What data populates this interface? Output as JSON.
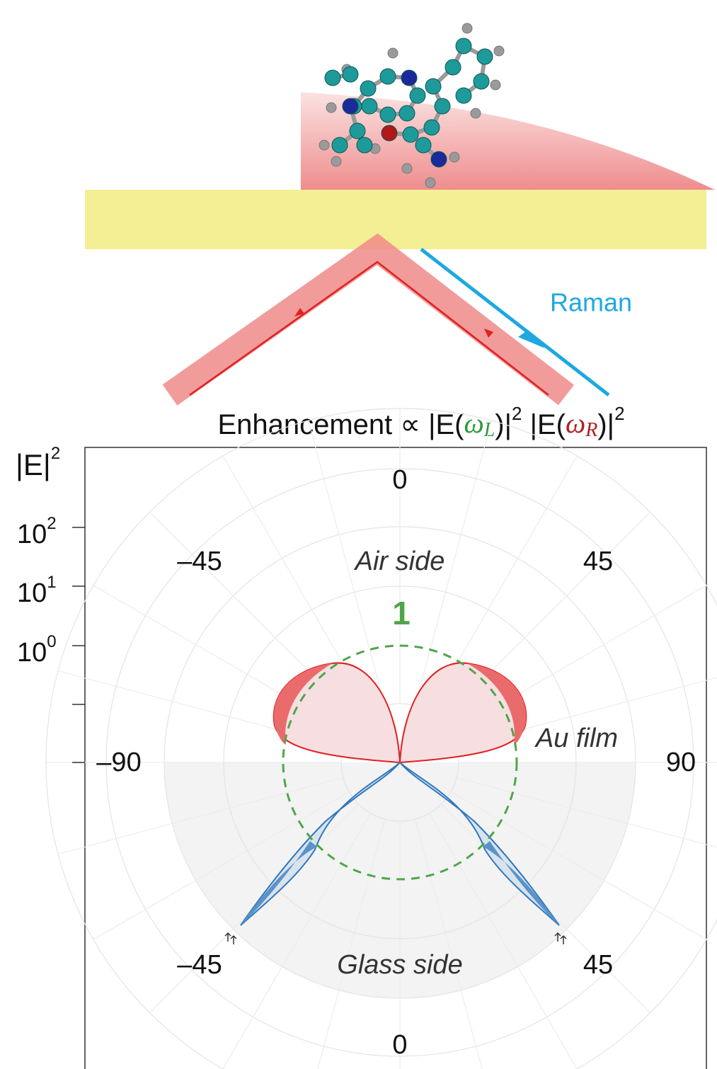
{
  "diagram": {
    "raman_label": "Raman",
    "equation": [
      "Enhancement ∝ |E(",
      "ω",
      "L",
      ")|",
      "2",
      " |E(",
      "ω",
      "R",
      ")|",
      "2"
    ],
    "axis_title": {
      "text": "|E|",
      "exp": "2"
    },
    "radial_ticks": [
      {
        "base": "10",
        "exp": "2"
      },
      {
        "base": "10",
        "exp": "1"
      },
      {
        "base": "10",
        "exp": "0"
      }
    ],
    "angle_labels": {
      "top": "0",
      "upper_left": "–45",
      "upper_right": "45",
      "left": "–90",
      "right": "90",
      "lower_left": "–45",
      "lower_right": "45",
      "bottom": "0"
    },
    "regions": {
      "air": "Air side",
      "glass": "Glass side",
      "film": "Au film",
      "unit_circle": "1"
    }
  }
}
